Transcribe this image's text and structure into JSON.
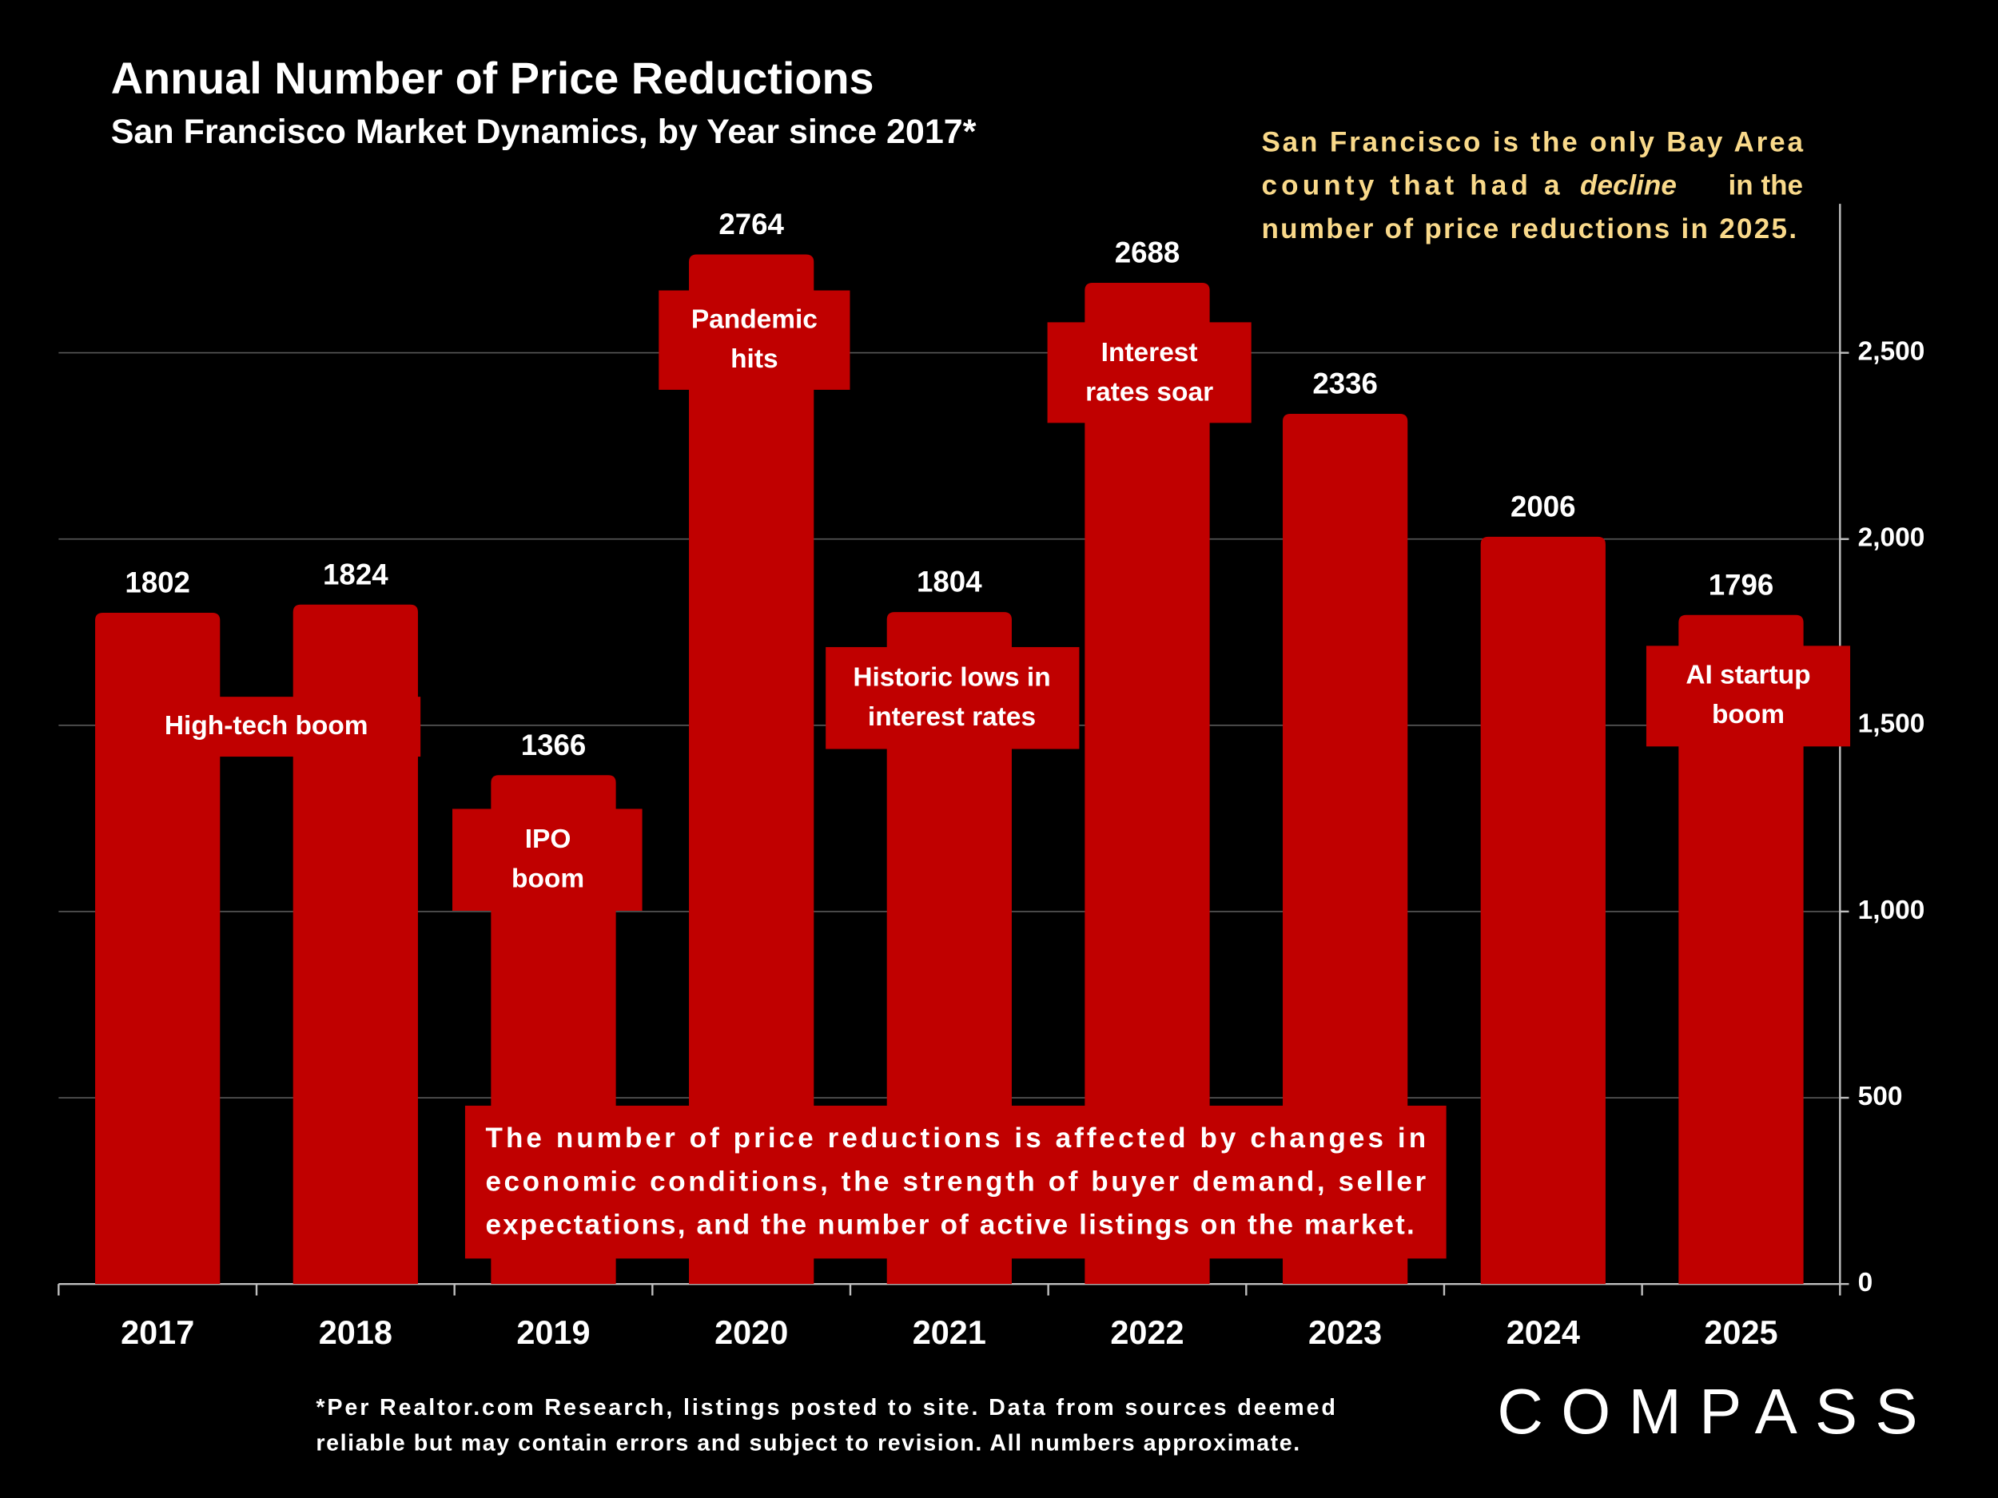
{
  "chart_data": {
    "type": "bar",
    "title": "Annual Number of Price Reductions",
    "subtitle": "San Francisco Market Dynamics, by Year since 2017*",
    "categories": [
      "2017",
      "2018",
      "2019",
      "2020",
      "2021",
      "2022",
      "2023",
      "2024",
      "2025"
    ],
    "values": [
      1802,
      1824,
      1366,
      2764,
      1804,
      2688,
      2336,
      2006,
      1796
    ],
    "color": "#c00000",
    "ylim": [
      0,
      2900
    ],
    "yticks": [
      0,
      500,
      {
        "value": 1000,
        "label": "1,000"
      },
      {
        "value": 1500,
        "label": "1,500"
      },
      {
        "value": 2000,
        "label": "2,000"
      },
      {
        "value": 2500,
        "label": "2,500"
      }
    ],
    "grid": true,
    "annotations": [
      {
        "lines": [
          "High-tech boom"
        ]
      },
      {
        "lines": [
          "IPO",
          "boom"
        ]
      },
      {
        "lines": [
          "Pandemic",
          "hits"
        ]
      },
      {
        "lines": [
          "Historic lows in",
          "interest rates"
        ]
      },
      {
        "lines": [
          "Interest",
          "rates soar"
        ]
      },
      {
        "lines": [
          "AI startup",
          "boom"
        ]
      }
    ],
    "note": [
      "San Francisco is the only Bay Area",
      "county that had a",
      "decline",
      "in the",
      "number of price reductions in 2025."
    ],
    "explanation": [
      "The number of price reductions is affected by changes in",
      "economic conditions, the strength of buyer demand, seller",
      "expectations, and the number of active listings on the market."
    ],
    "footnote": [
      "*Per Realtor.com Research, listings posted to site. Data from sources deemed",
      "reliable but may contain errors and subject to revision. All numbers approximate."
    ],
    "logo": "COMPASS"
  }
}
